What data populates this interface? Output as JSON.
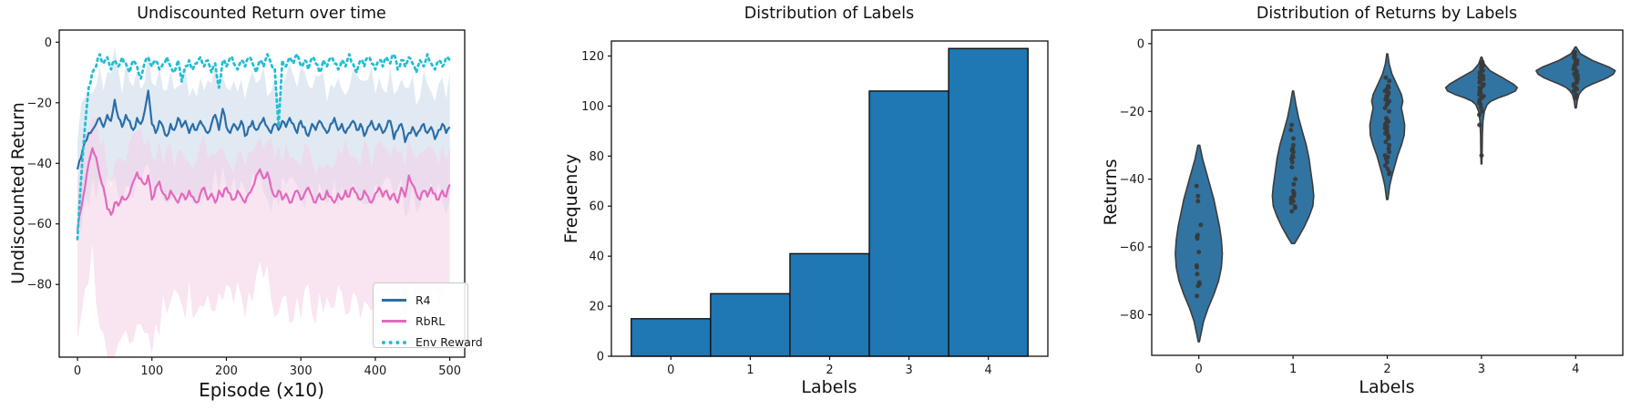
{
  "figure": {
    "background": "#ffffff",
    "text_color": "#1a1a1a"
  },
  "chart_data": [
    {
      "type": "line",
      "title": "Undiscounted Return over time",
      "xlabel": "Episode (x10)",
      "ylabel": "Undiscounted Return",
      "xlim": [
        -24.5,
        520
      ],
      "ylim": [
        -104,
        4
      ],
      "xticks": [
        0,
        100,
        200,
        300,
        400,
        500
      ],
      "yticks": [
        0,
        -20,
        -40,
        -60,
        -80
      ],
      "legend_position": "lower right",
      "x_start": 0,
      "x_step": 5,
      "series": [
        {
          "name": "R4",
          "color": "#2b6ea8",
          "style": "solid",
          "band_color": "#c9d8ea",
          "band_offsets": [
            -16,
            14
          ],
          "values": [
            -42,
            -38,
            -33,
            -30,
            -29,
            -27,
            -25,
            -28,
            -24,
            -26,
            -19,
            -25,
            -28,
            -24,
            -26,
            -29,
            -25,
            -27,
            -23,
            -16,
            -27,
            -30,
            -26,
            -28,
            -31,
            -27,
            -29,
            -25,
            -28,
            -26,
            -30,
            -27,
            -29,
            -26,
            -28,
            -30,
            -27,
            -24,
            -29,
            -22,
            -28,
            -30,
            -27,
            -29,
            -26,
            -31,
            -28,
            -26,
            -29,
            -27,
            -25,
            -28,
            -30,
            -27,
            -29,
            -26,
            -28,
            -25,
            -27,
            -30,
            -26,
            -28,
            -31,
            -27,
            -29,
            -26,
            -28,
            -30,
            -27,
            -25,
            -29,
            -27,
            -30,
            -28,
            -26,
            -29,
            -27,
            -31,
            -28,
            -26,
            -29,
            -27,
            -30,
            -28,
            -26,
            -32,
            -29,
            -27,
            -33,
            -30,
            -28,
            -31,
            -29,
            -27,
            -30,
            -28,
            -32,
            -29,
            -27,
            -30,
            -28
          ]
        },
        {
          "name": "RbRL",
          "color": "#e269be",
          "style": "solid",
          "band_color": "#f4cde6",
          "band_offsets": [
            -30,
            13
          ],
          "values": [
            -62,
            -55,
            -48,
            -40,
            -35,
            -38,
            -44,
            -48,
            -55,
            -57,
            -53,
            -54,
            -51,
            -52,
            -50,
            -46,
            -43,
            -45,
            -47,
            -44,
            -52,
            -48,
            -46,
            -50,
            -52,
            -49,
            -51,
            -53,
            -50,
            -52,
            -49,
            -51,
            -53,
            -50,
            -48,
            -52,
            -50,
            -53,
            -49,
            -51,
            -48,
            -50,
            -52,
            -49,
            -51,
            -53,
            -50,
            -48,
            -44,
            -42,
            -45,
            -43,
            -48,
            -51,
            -49,
            -52,
            -50,
            -53,
            -51,
            -49,
            -52,
            -50,
            -48,
            -51,
            -53,
            -50,
            -52,
            -49,
            -51,
            -53,
            -50,
            -52,
            -49,
            -51,
            -48,
            -50,
            -52,
            -49,
            -51,
            -53,
            -50,
            -48,
            -51,
            -49,
            -52,
            -50,
            -53,
            -48,
            -51,
            -44,
            -47,
            -50,
            -52,
            -49,
            -51,
            -48,
            -50,
            -52,
            -49,
            -51,
            -47
          ]
        },
        {
          "name": "Env Reward",
          "color": "#22bed4",
          "style": "dotted",
          "values": [
            -65,
            -45,
            -28,
            -15,
            -10,
            -8,
            -4,
            -7,
            -5,
            -9,
            -6,
            -8,
            -5,
            -7,
            -10,
            -6,
            -8,
            -12,
            -7,
            -5,
            -8,
            -6,
            -9,
            -7,
            -5,
            -8,
            -10,
            -6,
            -13,
            -8,
            -6,
            -9,
            -7,
            -5,
            -8,
            -6,
            -10,
            -7,
            -15,
            -6,
            -8,
            -5,
            -7,
            -9,
            -6,
            -8,
            -5,
            -7,
            -10,
            -6,
            -8,
            -4,
            -7,
            -9,
            -28,
            -6,
            -8,
            -5,
            -7,
            -4,
            -8,
            -6,
            -9,
            -5,
            -7,
            -10,
            -6,
            -8,
            -5,
            -7,
            -9,
            -6,
            -8,
            -4,
            -7,
            -10,
            -6,
            -8,
            -5,
            -7,
            -9,
            -6,
            -8,
            -5,
            -7,
            -4,
            -9,
            -6,
            -8,
            -5,
            -7,
            -10,
            -6,
            -8,
            -4,
            -7,
            -9,
            -6,
            -8,
            -5,
            -6
          ]
        }
      ]
    },
    {
      "type": "bar",
      "title": "Distribution of Labels",
      "xlabel": "Labels",
      "ylabel": "Frequency",
      "categories": [
        0,
        1,
        2,
        3,
        4
      ],
      "values": [
        15,
        25,
        41,
        106,
        123
      ],
      "bar_width": 1,
      "xlim": [
        -0.75,
        4.75
      ],
      "ylim": [
        0,
        126
      ],
      "xticks": [
        0,
        1,
        2,
        3,
        4
      ],
      "yticks": [
        0,
        20,
        40,
        60,
        80,
        100,
        120
      ],
      "bar_color": "#1f77b4",
      "bar_edge_color": "#111111"
    },
    {
      "type": "violin",
      "title": "Distribution of Returns by Labels",
      "xlabel": "Labels",
      "ylabel": "Returns",
      "categories": [
        0,
        1,
        2,
        3,
        4
      ],
      "xlim": [
        -0.5,
        4.5
      ],
      "ylim": [
        -92,
        4
      ],
      "xticks": [
        0,
        1,
        2,
        3,
        4
      ],
      "yticks": [
        0,
        -20,
        -40,
        -60,
        -80
      ],
      "fill_color": "#3274a1",
      "edge_color": "#3c3c3c",
      "dot_color": "#383838",
      "violins": [
        {
          "label": 0,
          "range": [
            -88,
            -30
          ],
          "profile": [
            [
              -30,
              0.01
            ],
            [
              -34,
              0.04
            ],
            [
              -38,
              0.08
            ],
            [
              -42,
              0.12
            ],
            [
              -46,
              0.16
            ],
            [
              -50,
              0.19
            ],
            [
              -54,
              0.22
            ],
            [
              -58,
              0.24
            ],
            [
              -62,
              0.25
            ],
            [
              -66,
              0.24
            ],
            [
              -70,
              0.21
            ],
            [
              -74,
              0.16
            ],
            [
              -78,
              0.1
            ],
            [
              -82,
              0.05
            ],
            [
              -86,
              0.02
            ],
            [
              -88,
              0.006
            ]
          ],
          "dots": [
            -42,
            -45,
            -46.5,
            -53.5,
            -56.5,
            -57,
            -57.5,
            -61.5,
            -65.5,
            -66,
            -68,
            -70.5,
            -71,
            -71.5,
            -74.5
          ]
        },
        {
          "label": 1,
          "range": [
            -59,
            -14
          ],
          "profile": [
            [
              -14,
              0.006
            ],
            [
              -18,
              0.03
            ],
            [
              -22,
              0.06
            ],
            [
              -26,
              0.1
            ],
            [
              -30,
              0.14
            ],
            [
              -34,
              0.17
            ],
            [
              -38,
              0.19
            ],
            [
              -42,
              0.21
            ],
            [
              -45,
              0.22
            ],
            [
              -48,
              0.21
            ],
            [
              -51,
              0.17
            ],
            [
              -54,
              0.12
            ],
            [
              -57,
              0.06
            ],
            [
              -59,
              0.015
            ]
          ],
          "dots": [
            -24,
            -25.5,
            -28,
            -30,
            -31,
            -31.5,
            -32,
            -33,
            -33.5,
            -34,
            -35,
            -36.5,
            -40,
            -41.5,
            -43.5,
            -44,
            -44.5,
            -45,
            -45.5,
            -46,
            -46.5,
            -47,
            -48,
            -48.5,
            -49.5
          ]
        },
        {
          "label": 2,
          "range": [
            -46,
            -3
          ],
          "profile": [
            [
              -3,
              0.005
            ],
            [
              -6,
              0.02
            ],
            [
              -9,
              0.05
            ],
            [
              -12,
              0.1
            ],
            [
              -15,
              0.15
            ],
            [
              -17,
              0.165
            ],
            [
              -19,
              0.15
            ],
            [
              -21,
              0.165
            ],
            [
              -24,
              0.185
            ],
            [
              -27,
              0.18
            ],
            [
              -30,
              0.15
            ],
            [
              -33,
              0.11
            ],
            [
              -36,
              0.08
            ],
            [
              -39,
              0.05
            ],
            [
              -42,
              0.025
            ],
            [
              -46,
              0.007
            ]
          ],
          "dots": [
            -10,
            -11,
            -12.5,
            -13,
            -13.5,
            -14,
            -14.5,
            -15,
            -15.5,
            -16,
            -16.5,
            -17,
            -17.5,
            -18,
            -19,
            -20,
            -22,
            -22.5,
            -23,
            -23.5,
            -24,
            -24.5,
            -25,
            -25.5,
            -26,
            -26.5,
            -27,
            -27.5,
            -28,
            -29,
            -30,
            -31,
            -32,
            -33,
            -33.5,
            -34,
            -35,
            -36,
            -37,
            -38,
            -38.5
          ]
        },
        {
          "label": 3,
          "range": [
            -35.5,
            -4
          ],
          "profile": [
            [
              -4,
              0.005
            ],
            [
              -6,
              0.03
            ],
            [
              -8,
              0.09
            ],
            [
              -10,
              0.22
            ],
            [
              -12,
              0.34
            ],
            [
              -13,
              0.38
            ],
            [
              -14,
              0.36
            ],
            [
              -15,
              0.28
            ],
            [
              -16,
              0.18
            ],
            [
              -17,
              0.1
            ],
            [
              -18,
              0.06
            ],
            [
              -20,
              0.03
            ],
            [
              -23,
              0.015
            ],
            [
              -27,
              0.01
            ],
            [
              -31,
              0.008
            ],
            [
              -35.5,
              0.004
            ]
          ],
          "dots": [
            -5.5,
            -6,
            -6.5,
            -7,
            -7.5,
            -8,
            -8.5,
            -9,
            -9.5,
            -10,
            -10.5,
            -11,
            -11.5,
            -12,
            -12.5,
            -13,
            -13.5,
            -14,
            -14.5,
            -15,
            -15.5,
            -16,
            -16.5,
            -17,
            -17.5,
            -18,
            -19,
            -20,
            -21,
            -24,
            -33
          ]
        },
        {
          "label": 4,
          "range": [
            -19,
            -1
          ],
          "profile": [
            [
              -1,
              0.005
            ],
            [
              -3,
              0.05
            ],
            [
              -5,
              0.18
            ],
            [
              -7,
              0.36
            ],
            [
              -8,
              0.42
            ],
            [
              -9,
              0.4
            ],
            [
              -10,
              0.34
            ],
            [
              -11,
              0.26
            ],
            [
              -12,
              0.17
            ],
            [
              -13,
              0.1
            ],
            [
              -14,
              0.06
            ],
            [
              -15,
              0.035
            ],
            [
              -17,
              0.015
            ],
            [
              -19,
              0.006
            ]
          ],
          "dots": [
            -2.5,
            -3,
            -3.5,
            -4,
            -4.5,
            -5,
            -5.5,
            -6,
            -6.5,
            -7,
            -7.5,
            -8,
            -8.5,
            -9,
            -9.5,
            -10,
            -10.5,
            -11,
            -11.5,
            -12,
            -12.5,
            -13,
            -13.5,
            -14,
            -15,
            -16
          ]
        }
      ]
    }
  ]
}
